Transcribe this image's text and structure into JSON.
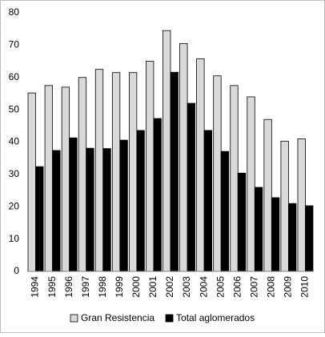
{
  "chart_data": {
    "type": "bar",
    "categories": [
      "1994",
      "1995",
      "1996",
      "1997",
      "1998",
      "1999",
      "2000",
      "2001",
      "2002",
      "2003",
      "2004",
      "2005",
      "2006",
      "2007",
      "2008",
      "2009",
      "2010"
    ],
    "series": [
      {
        "name": "Gran Resistencia",
        "color": "#d9d9d9",
        "values": [
          55.2,
          57.5,
          57,
          60,
          62.5,
          61.5,
          61.5,
          65,
          74.5,
          70.5,
          65.8,
          60.5,
          57.5,
          54,
          47,
          40.3,
          41
        ]
      },
      {
        "name": "Total aglomerados",
        "color": "#000000",
        "values": [
          32.4,
          37.4,
          41.3,
          38.1,
          38,
          40.6,
          43.6,
          47.3,
          61.6,
          52,
          43.6,
          37.1,
          30.4,
          26,
          22.8,
          21,
          20.3
        ]
      }
    ],
    "ylim": [
      0,
      80
    ],
    "yticks": [
      0,
      10,
      20,
      30,
      40,
      50,
      60,
      70,
      80
    ],
    "grid": false,
    "legend": "bottom"
  }
}
